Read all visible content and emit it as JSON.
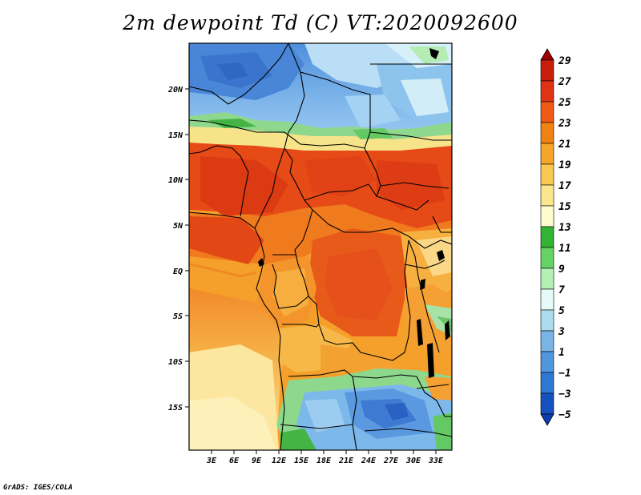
{
  "title": "2m dewpoint Td (C) VT:2020092600",
  "credit": "GrADS: IGES/COLA",
  "map": {
    "lat_ticks": [
      "20N",
      "15N",
      "10N",
      "5N",
      "EQ",
      "5S",
      "10S",
      "15S"
    ],
    "lon_ticks": [
      "3E",
      "6E",
      "9E",
      "12E",
      "15E",
      "18E",
      "21E",
      "24E",
      "27E",
      "30E",
      "33E"
    ]
  },
  "colorbar": {
    "labels": [
      "29",
      "27",
      "25",
      "23",
      "21",
      "19",
      "17",
      "15",
      "13",
      "11",
      "9",
      "7",
      "5",
      "3",
      "1",
      "−1",
      "−3",
      "−5"
    ],
    "colors": [
      "#a00000",
      "#c81e0a",
      "#e03214",
      "#f05a14",
      "#f08214",
      "#f5a528",
      "#fac850",
      "#fae68c",
      "#fffacd",
      "#32b432",
      "#64d264",
      "#b4f0b4",
      "#e6fafa",
      "#aadcf0",
      "#78b4e6",
      "#5096dc",
      "#2d78d2",
      "#1450be",
      "#0a3cb4"
    ]
  }
}
